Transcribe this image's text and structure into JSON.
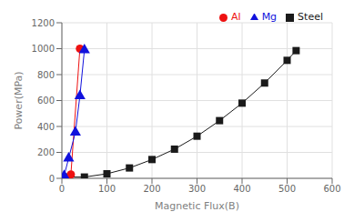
{
  "chart_data": {
    "type": "line",
    "xlabel": "Magnetic Flux(B)",
    "ylabel": "Power(MPa)",
    "xlim": [
      0,
      600
    ],
    "ylim": [
      0,
      1200
    ],
    "xticks": [
      0,
      100,
      200,
      300,
      400,
      500,
      600
    ],
    "yticks": [
      0,
      200,
      400,
      600,
      800,
      1000,
      1200
    ],
    "grid": true,
    "legend": "upper right",
    "series": [
      {
        "name": "Steel",
        "color": "#1a1a1a",
        "marker": "square",
        "x": [
          5,
          15,
          50,
          100,
          150,
          200,
          250,
          300,
          350,
          400,
          450,
          500,
          520
        ],
        "values": [
          5,
          10,
          10,
          35,
          80,
          145,
          225,
          325,
          445,
          580,
          735,
          910,
          985
        ]
      },
      {
        "name": "Al",
        "color": "#ee1111",
        "marker": "circle",
        "x": [
          20,
          40
        ],
        "values": [
          30,
          1000
        ]
      },
      {
        "name": "Mg",
        "color": "#1111dd",
        "marker": "triangle",
        "x": [
          5,
          15,
          30,
          40,
          50
        ],
        "values": [
          20,
          155,
          355,
          635,
          990
        ]
      }
    ]
  }
}
